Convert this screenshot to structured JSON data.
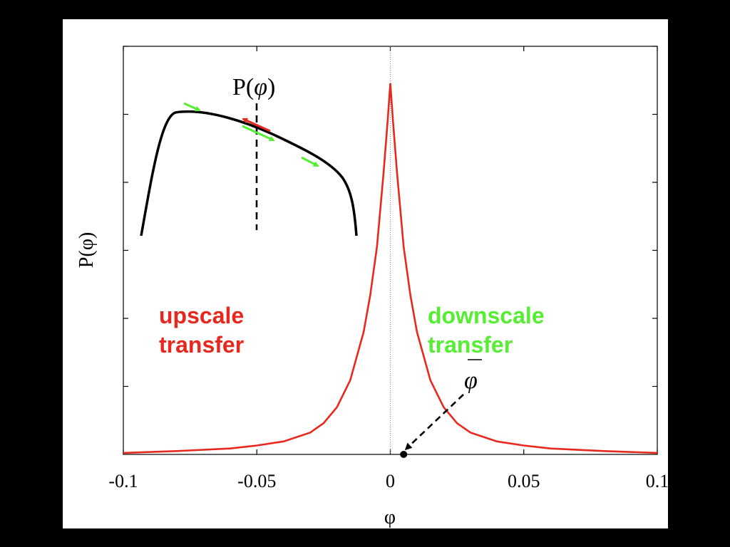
{
  "chart_data": {
    "type": "line",
    "xlabel": "φ",
    "ylabel": "P(φ)",
    "xlim": [
      -0.1,
      0.1
    ],
    "ylim": [
      0,
      1.1
    ],
    "x_ticks": [
      -0.1,
      -0.05,
      0,
      0.05,
      0.1
    ],
    "x_tick_labels": [
      "-0.1",
      "-0.05",
      "0",
      "0.05",
      "0.1"
    ],
    "y_ticks_count": 6,
    "y_tick_labels": [],
    "grid": false,
    "series": [
      {
        "color": "#e8281e",
        "x": [
          -0.1,
          -0.08,
          -0.06,
          -0.05,
          -0.04,
          -0.03,
          -0.025,
          -0.02,
          -0.015,
          -0.01,
          -0.0075,
          -0.005,
          -0.0025,
          -0.001,
          0,
          0.001,
          0.0025,
          0.005,
          0.0075,
          0.01,
          0.015,
          0.02,
          0.025,
          0.03,
          0.04,
          0.05,
          0.06,
          0.08,
          0.1
        ],
        "y": [
          0.004,
          0.009,
          0.016,
          0.024,
          0.035,
          0.059,
          0.084,
          0.127,
          0.2,
          0.33,
          0.43,
          0.56,
          0.76,
          0.9,
          1.0,
          0.9,
          0.76,
          0.56,
          0.43,
          0.33,
          0.2,
          0.127,
          0.084,
          0.059,
          0.035,
          0.024,
          0.016,
          0.009,
          0.004
        ]
      }
    ],
    "reference_line_x": 0,
    "mean_marker": {
      "x": 0.005,
      "y": 0
    }
  },
  "annotations": {
    "upscale_line1": "upscale",
    "upscale_line2": "transfer",
    "upscale_color": "#e8281e",
    "downscale_line1": "downscale",
    "downscale_line2": "transfer",
    "downscale_color": "#55ee33",
    "phi_bar_symbol": "φ",
    "inset_label_P": "P(",
    "inset_label_phi": "φ",
    "inset_label_close": ")"
  },
  "inset": {
    "curve_color": "#000000",
    "arrow_colors": {
      "forward": "#55ee33",
      "backward": "#e8281e"
    }
  }
}
